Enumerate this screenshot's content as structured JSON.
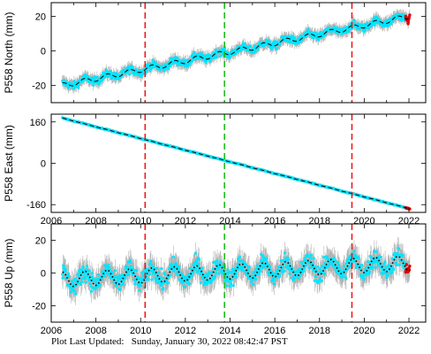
{
  "footer": {
    "prefix": "Plot Last Updated:",
    "timestamp": "Sunday, January 30, 2022 08:42:47 PST"
  },
  "colors": {
    "observations": "#00e5ff",
    "error_bars": "#b4b4b4",
    "model_line": "#000000",
    "recent_points": "#dd0000",
    "equipment_change": "#ee1111",
    "earthquake": "#11bb11",
    "frame": "#000000"
  },
  "chart_data": [
    {
      "type": "scatter",
      "ylabel": "P558 North (mm)",
      "xlim": [
        2006.0,
        2022.75
      ],
      "ylim": [
        -30,
        28
      ],
      "xticks": [
        2006,
        2008,
        2010,
        2012,
        2014,
        2016,
        2018,
        2020,
        2022
      ],
      "xticklabels": [],
      "yticks": [
        -20,
        0,
        20
      ],
      "series": [
        {
          "role": "observations",
          "x_range": [
            2006.5,
            2022.05
          ],
          "trend": {
            "x": [
              2006.5,
              2022.0
            ],
            "y": [
              -20,
              20
            ]
          },
          "seasonal_amplitude": 1.5,
          "scatter": 1.6
        },
        {
          "role": "model",
          "x_range": [
            2006.5,
            2022.05
          ]
        }
      ],
      "vlines": [
        {
          "x": 2010.2,
          "kind": "equipment_change"
        },
        {
          "x": 2013.75,
          "kind": "earthquake"
        },
        {
          "x": 2019.45,
          "kind": "equipment_change"
        }
      ]
    },
    {
      "type": "scatter",
      "ylabel": "P558 East (mm)",
      "xlim": [
        2006.0,
        2022.75
      ],
      "ylim": [
        -190,
        190
      ],
      "xticks": [
        2006,
        2008,
        2010,
        2012,
        2014,
        2016,
        2018,
        2020,
        2022
      ],
      "xticklabels": [
        "2006",
        "2008",
        "2010",
        "2012",
        "2014",
        "2016",
        "2018",
        "2020",
        "2022"
      ],
      "yticks": [
        -160,
        0,
        160
      ],
      "series": [
        {
          "role": "observations",
          "x_range": [
            2006.5,
            2022.05
          ],
          "trend": {
            "x": [
              2006.5,
              2022.0
            ],
            "y": [
              175,
              -175
            ]
          },
          "seasonal_amplitude": 0.5,
          "scatter": 1.0
        },
        {
          "role": "model",
          "x_range": [
            2006.5,
            2022.05
          ]
        }
      ],
      "vlines": [
        {
          "x": 2010.2,
          "kind": "equipment_change"
        },
        {
          "x": 2013.75,
          "kind": "earthquake"
        },
        {
          "x": 2019.45,
          "kind": "equipment_change"
        }
      ]
    },
    {
      "type": "scatter",
      "ylabel": "P558 Up (mm)",
      "xlim": [
        2006.0,
        2022.75
      ],
      "ylim": [
        -30,
        30
      ],
      "xticks": [
        2006,
        2008,
        2010,
        2012,
        2014,
        2016,
        2018,
        2020,
        2022
      ],
      "xticklabels": [
        "2006",
        "2008",
        "2010",
        "2012",
        "2014",
        "2016",
        "2018",
        "2020",
        "2022"
      ],
      "yticks": [
        -20,
        0,
        20
      ],
      "series": [
        {
          "role": "observations",
          "x_range": [
            2006.5,
            2022.05
          ],
          "trend": {
            "x": [
              2006.5,
              2022.0
            ],
            "y": [
              -4,
              6
            ]
          },
          "seasonal_amplitude": 4.5,
          "scatter": 4.0
        },
        {
          "role": "model",
          "x_range": [
            2006.5,
            2022.05
          ]
        }
      ],
      "vlines": [
        {
          "x": 2010.2,
          "kind": "equipment_change"
        },
        {
          "x": 2013.75,
          "kind": "earthquake"
        },
        {
          "x": 2019.45,
          "kind": "equipment_change"
        }
      ]
    }
  ]
}
